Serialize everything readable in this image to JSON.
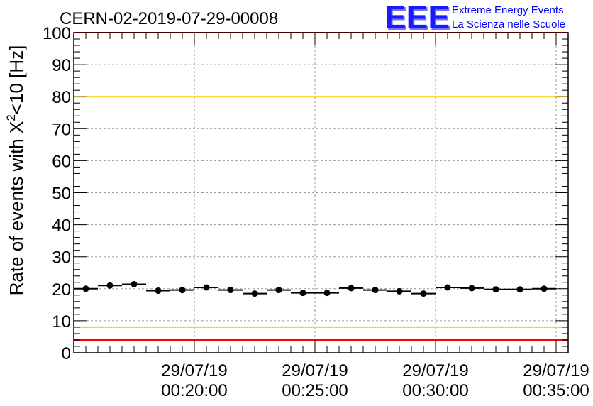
{
  "header": {
    "run_title": "CERN-02-2019-07-29-00008",
    "logo_text": "EEE",
    "logo_line1": "Extreme Energy Events",
    "logo_line2": "La Scienza nelle Scuole"
  },
  "chart_data": {
    "type": "scatter",
    "title": "CERN-02-2019-07-29-00008",
    "xlabel": "",
    "ylabel_prefix": "Rate of events with X",
    "ylabel_sup": "2",
    "ylabel_suffix": "<10 [Hz]",
    "ylim": [
      0,
      100
    ],
    "yticks": [
      0,
      10,
      20,
      30,
      40,
      50,
      60,
      70,
      80,
      90,
      100
    ],
    "xlim_minutes": [
      15.0,
      35.5
    ],
    "xticks": [
      {
        "minutes": 20,
        "date": "29/07/19",
        "time": "00:20:00"
      },
      {
        "minutes": 25,
        "date": "29/07/19",
        "time": "00:25:00"
      },
      {
        "minutes": 30,
        "date": "29/07/19",
        "time": "00:30:00"
      },
      {
        "minutes": 35,
        "date": "29/07/19",
        "time": "00:35:00"
      }
    ],
    "grid": true,
    "bin_width_minutes": 1.0,
    "points": [
      {
        "t": 15.5,
        "y": 20.0
      },
      {
        "t": 16.5,
        "y": 21.0
      },
      {
        "t": 17.5,
        "y": 21.4
      },
      {
        "t": 18.5,
        "y": 19.4
      },
      {
        "t": 19.5,
        "y": 19.6
      },
      {
        "t": 20.5,
        "y": 20.4
      },
      {
        "t": 21.5,
        "y": 19.6
      },
      {
        "t": 22.5,
        "y": 18.5
      },
      {
        "t": 23.5,
        "y": 19.6
      },
      {
        "t": 24.5,
        "y": 18.7
      },
      {
        "t": 25.5,
        "y": 18.7
      },
      {
        "t": 26.5,
        "y": 20.2
      },
      {
        "t": 27.5,
        "y": 19.6
      },
      {
        "t": 28.5,
        "y": 19.2
      },
      {
        "t": 29.5,
        "y": 18.5
      },
      {
        "t": 30.5,
        "y": 20.4
      },
      {
        "t": 31.5,
        "y": 20.2
      },
      {
        "t": 32.5,
        "y": 19.8
      },
      {
        "t": 33.5,
        "y": 19.8
      },
      {
        "t": 34.5,
        "y": 20.0
      }
    ],
    "reference_lines": [
      {
        "y": 100,
        "color": "#ff0000"
      },
      {
        "y": 80,
        "color": "#ffcc00"
      },
      {
        "y": 8,
        "color": "#ffcc00"
      },
      {
        "y": 4,
        "color": "#ff0000"
      }
    ]
  },
  "colors": {
    "logo_blue": "#0000ff",
    "marker": "#000000",
    "grid": "#9a9a9a"
  }
}
